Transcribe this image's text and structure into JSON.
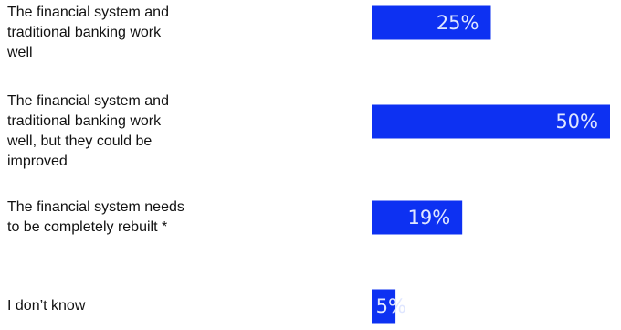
{
  "chart_data": {
    "type": "bar",
    "orientation": "horizontal",
    "categories": [
      "The financial system and traditional banking work well",
      "The financial system and traditional banking work well, but they could be improved",
      "The financial system needs to be completely rebuilt *",
      "I don’t know"
    ],
    "values": [
      25,
      50,
      19,
      5
    ],
    "value_labels": [
      "25%",
      "50%",
      "19%",
      "5%"
    ],
    "color": "#0d31f2",
    "label_color": "#dfe6ff"
  }
}
